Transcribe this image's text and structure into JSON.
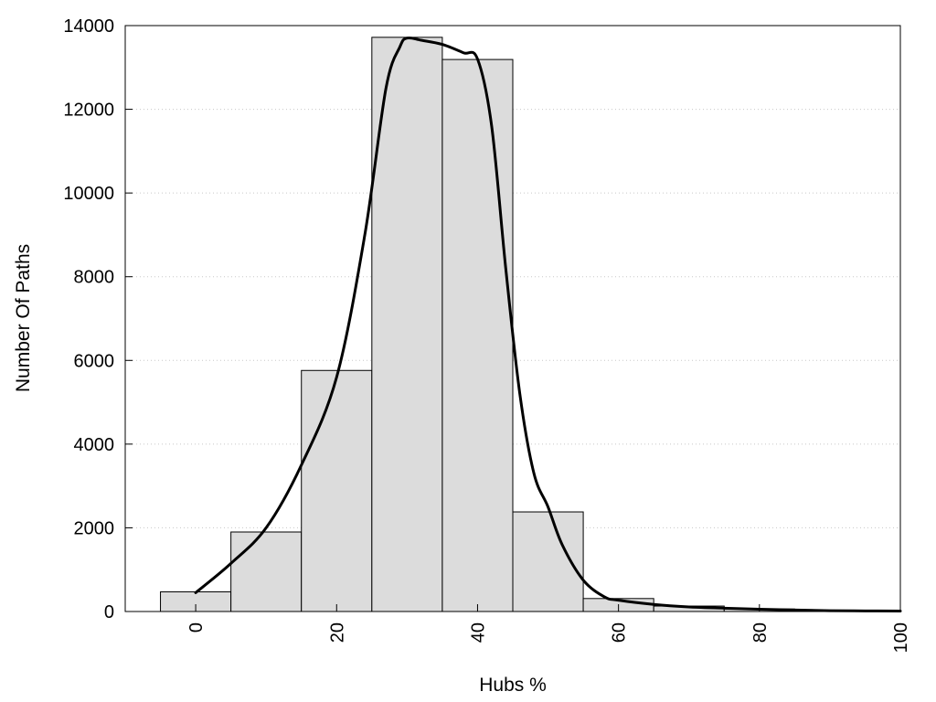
{
  "chart_data": {
    "type": "bar",
    "title": "",
    "xlabel": "Hubs %",
    "ylabel": "Number Of Paths",
    "xlim": [
      -10,
      100
    ],
    "ylim": [
      0,
      14000
    ],
    "grid": true,
    "x_ticks": [
      0,
      20,
      40,
      60,
      80,
      100
    ],
    "y_ticks": [
      0,
      2000,
      4000,
      6000,
      8000,
      10000,
      12000,
      14000
    ],
    "bin_width": 10,
    "bins": [
      {
        "x": 0,
        "value": 470
      },
      {
        "x": 10,
        "value": 1900
      },
      {
        "x": 20,
        "value": 5760
      },
      {
        "x": 30,
        "value": 13720
      },
      {
        "x": 40,
        "value": 13190
      },
      {
        "x": 50,
        "value": 2380
      },
      {
        "x": 60,
        "value": 310
      },
      {
        "x": 70,
        "value": 130
      },
      {
        "x": 80,
        "value": 60
      },
      {
        "x": 90,
        "value": 25
      },
      {
        "x": 100,
        "value": 10
      }
    ],
    "curve": {
      "type": "line",
      "x": [
        0,
        5,
        10,
        15,
        20,
        24,
        27,
        29,
        30,
        32,
        35,
        38,
        40,
        42,
        44,
        46,
        48,
        50,
        52,
        55,
        58,
        60,
        65,
        70,
        75,
        80,
        85,
        90,
        95,
        100
      ],
      "y": [
        450,
        1150,
        2000,
        3500,
        5600,
        9000,
        12500,
        13500,
        13700,
        13650,
        13550,
        13350,
        13200,
        11600,
        8200,
        5200,
        3300,
        2500,
        1600,
        750,
        350,
        270,
        170,
        110,
        80,
        55,
        35,
        20,
        15,
        10
      ]
    }
  }
}
